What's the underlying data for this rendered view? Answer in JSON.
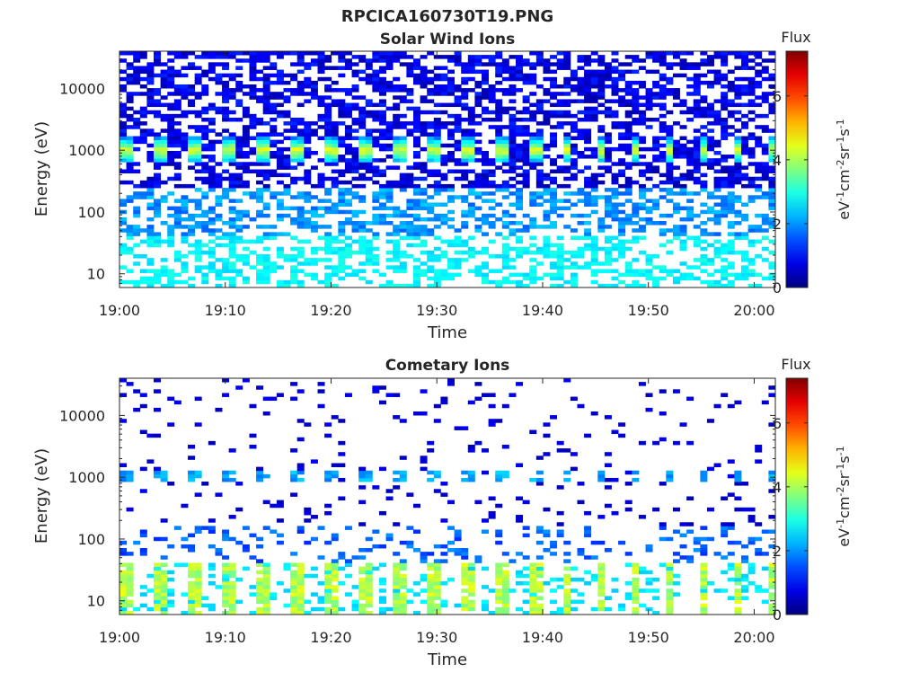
{
  "figure_title": "RPCICA160730T19.PNG",
  "chart_data": [
    {
      "type": "heatmap",
      "title": "Solar Wind Ions",
      "xlabel": "Time",
      "ylabel": "Energy (eV)",
      "x_ticks": [
        "19:00",
        "19:10",
        "19:20",
        "19:30",
        "19:40",
        "19:50",
        "20:00"
      ],
      "x_range": [
        "19:00",
        "20:02"
      ],
      "y_scale": "log",
      "y_ticks": [
        10,
        100,
        1000,
        10000
      ],
      "y_tick_labels": [
        "10",
        "100",
        "1000",
        "10000"
      ],
      "y_range": [
        6,
        40000
      ],
      "colorbar": {
        "title": "Flux",
        "label": "eV-1cm-2sr-1s-1",
        "ticks": [
          0,
          2,
          4,
          6
        ],
        "range": [
          0,
          7.4
        ],
        "colormap": "jet"
      },
      "features": {
        "burst_period_min": 3.2,
        "burst_energy_eV": 1000,
        "burst_peak_flux": 4.2,
        "background_flux": 1.0,
        "low_energy_flux": 2.5
      }
    },
    {
      "type": "heatmap",
      "title": "Cometary Ions",
      "xlabel": "Time",
      "ylabel": "Energy (eV)",
      "x_ticks": [
        "19:00",
        "19:10",
        "19:20",
        "19:30",
        "19:40",
        "19:50",
        "20:00"
      ],
      "x_range": [
        "19:00",
        "20:02"
      ],
      "y_scale": "log",
      "y_ticks": [
        10,
        100,
        1000,
        10000
      ],
      "y_tick_labels": [
        "10",
        "100",
        "1000",
        "10000"
      ],
      "y_range": [
        6,
        40000
      ],
      "colorbar": {
        "title": "Flux",
        "label": "eV-1cm-2sr-1s-1",
        "ticks": [
          0,
          2,
          4,
          6
        ],
        "range": [
          0,
          7.4
        ],
        "colormap": "jet"
      },
      "features": {
        "burst_period_min": 3.2,
        "burst_energy_eV": 1000,
        "burst_peak_flux": 2.5,
        "low_energy_peak_flux": 4.5,
        "background_flux": 0.8
      }
    }
  ]
}
